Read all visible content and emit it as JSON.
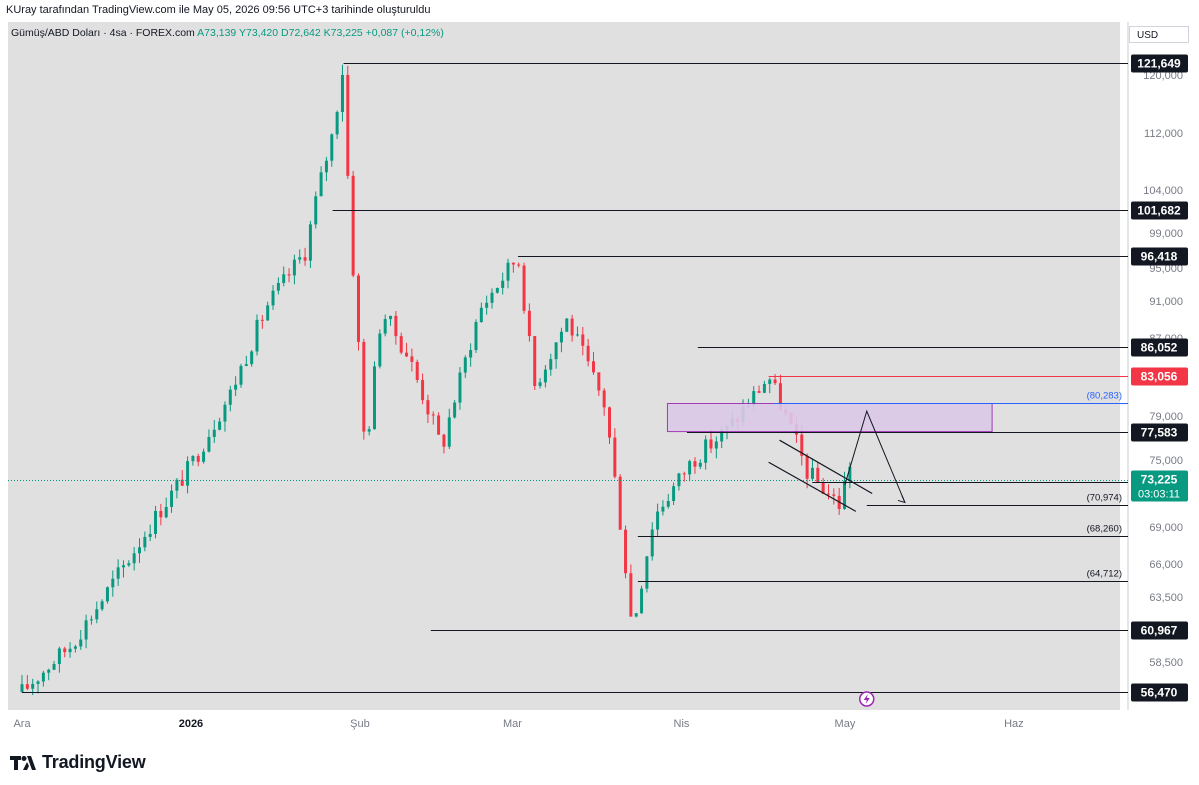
{
  "header": {
    "caption": "KUray tarafından TradingView.com ile May 05, 2026 09:56 UTC+3 tarihinde oluşturuldu"
  },
  "symbol": {
    "name": "Gümüş/ABD Doları · 4sa · FOREX.com",
    "ohlc": "A73,139  Y73,420  D72,642  K73,225  +0,087 (+0,12%)"
  },
  "currency_button": "USD",
  "footer": {
    "brand": "TradingView"
  },
  "colors": {
    "background": "#e0e0e0",
    "up": "#089981",
    "down": "#f23645",
    "level_line": "#131722",
    "zone_fill": "#dcc9e8",
    "zone_border": "#9c27b0",
    "blue_level": "#2962ff",
    "red_level": "#f23645"
  },
  "chart_data": {
    "type": "candlestick",
    "title": "",
    "xlabel": "",
    "ylabel": "",
    "ylim": [
      55000,
      124500
    ],
    "x_ticks": [
      "Ara",
      "2026",
      "Şub",
      "Mar",
      "Nis",
      "May",
      "Haz"
    ],
    "y_ticks": [
      "120,000",
      "112,000",
      "104,000",
      "99,000",
      "95,000",
      "91,000",
      "87,000",
      "79,000",
      "75,000",
      "69,000",
      "66,000",
      "63,500",
      "58,500"
    ],
    "current_price": {
      "label": "73,225",
      "countdown": "03:03:11"
    },
    "price_path": [
      [
        "2025-12-01",
        56470
      ],
      [
        "2025-12-10",
        59800
      ],
      [
        "2025-12-20",
        66000
      ],
      [
        "2026-01-01",
        74500
      ],
      [
        "2026-01-08",
        81000
      ],
      [
        "2026-01-15",
        90500
      ],
      [
        "2026-01-22",
        97000
      ],
      [
        "2026-01-27",
        112000
      ],
      [
        "2026-01-29",
        121649
      ],
      [
        "2026-01-30",
        101682
      ],
      [
        "2026-02-02",
        75000
      ],
      [
        "2026-02-05",
        90000
      ],
      [
        "2026-02-10",
        85000
      ],
      [
        "2026-02-16",
        76000
      ],
      [
        "2026-02-23",
        90000
      ],
      [
        "2026-03-02",
        96418
      ],
      [
        "2026-03-05",
        82000
      ],
      [
        "2026-03-11",
        89000
      ],
      [
        "2026-03-18",
        80000
      ],
      [
        "2026-03-23",
        60967
      ],
      [
        "2026-03-27",
        70000
      ],
      [
        "2026-04-03",
        75000
      ],
      [
        "2026-04-10",
        78000
      ],
      [
        "2026-04-17",
        83056
      ],
      [
        "2026-04-24",
        74000
      ],
      [
        "2026-04-30",
        71000
      ],
      [
        "2026-05-02",
        75000
      ],
      [
        "2026-05-05",
        73225
      ]
    ],
    "labeled_levels": [
      {
        "label": "121,649",
        "value": 121649,
        "color": "#131722"
      },
      {
        "label": "101,682",
        "value": 101682,
        "color": "#131722"
      },
      {
        "label": "96,418",
        "value": 96418,
        "color": "#131722"
      },
      {
        "label": "86,052",
        "value": 86052,
        "color": "#131722"
      },
      {
        "label": "83,056",
        "value": 83056,
        "color": "#f23645"
      },
      {
        "label": "77,583",
        "value": 77583,
        "color": "#131722"
      },
      {
        "label": "73,001",
        "value": 73001,
        "color": "#131722"
      },
      {
        "label": "60,967",
        "value": 60967,
        "color": "#131722"
      },
      {
        "label": "56,470",
        "value": 56470,
        "color": "#131722"
      }
    ],
    "annotated_levels": [
      {
        "label": "(80,283)",
        "value": 80283,
        "color": "#2962ff"
      },
      {
        "label": "(70,974)",
        "value": 70974,
        "color": "#131722"
      },
      {
        "label": "(68,260)",
        "value": 68260,
        "color": "#131722"
      },
      {
        "label": "(64,712)",
        "value": 64712,
        "color": "#131722"
      }
    ],
    "zone": {
      "top": 80283,
      "bottom": 77583
    }
  }
}
